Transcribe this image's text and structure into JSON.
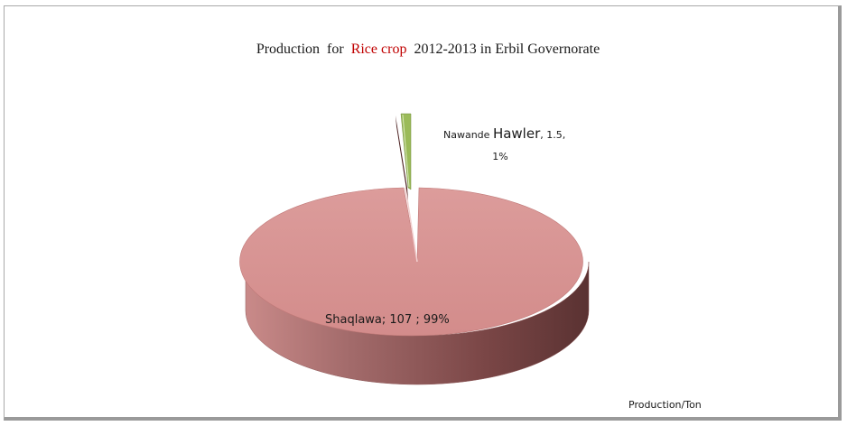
{
  "chart_data": {
    "type": "pie",
    "title": {
      "prefix": "Production  for  ",
      "crop": "Rice crop",
      "suffix": "  2012-2013 in Erbil Governorate"
    },
    "slices": [
      {
        "name": "Shaqlawa",
        "value": 107,
        "percent": "99%",
        "color": "#d99594"
      },
      {
        "name": "Nawande Hawler",
        "value": 1.5,
        "percent": "1%",
        "color": "#9bbb59"
      }
    ],
    "labels": {
      "shaqlawa": "Shaqlawa;  107 ; 99%",
      "nawande_prefix": "Nawande ",
      "nawande_name": "Hawler",
      "nawande_value": ", 1.5,",
      "nawande_percent": "1%"
    },
    "unit_note": "Production/Ton",
    "three_d": true
  }
}
